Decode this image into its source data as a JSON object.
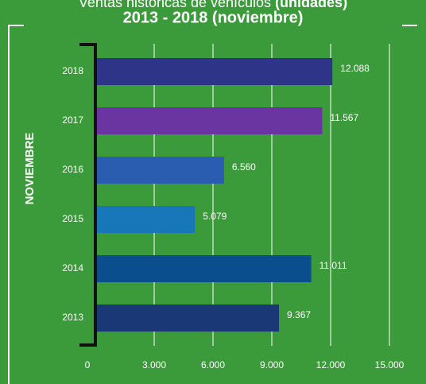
{
  "chart_data": {
    "type": "bar",
    "orientation": "horizontal",
    "title": "Ventas históricas de vehículos",
    "title_emphasis": "(unidades)",
    "subtitle": "2013 - 2018 (noviembre)",
    "y_label": "NOVIEMBRE",
    "categories": [
      "2018",
      "2017",
      "2016",
      "2015",
      "2014",
      "2013"
    ],
    "values": [
      12088,
      11567,
      6560,
      5079,
      11011,
      9367
    ],
    "value_labels": [
      "12.088",
      "11.567",
      "6.560",
      "5.079",
      "11.011",
      "9.367"
    ],
    "colors": [
      "#2e3488",
      "#6a35a0",
      "#2a5cb0",
      "#1877b8",
      "#0a4e8e",
      "#1b3876"
    ],
    "xlim": [
      0,
      15000
    ],
    "xticks": [
      0,
      {
        "value": 3000,
        "label": "3.000"
      },
      {
        "value": 6000,
        "label": "6.000"
      },
      {
        "value": 9000,
        "label": "9.000"
      },
      {
        "value": 12000,
        "label": "12.000"
      },
      {
        "value": 15000,
        "label": "15.000"
      }
    ],
    "grid": true
  }
}
